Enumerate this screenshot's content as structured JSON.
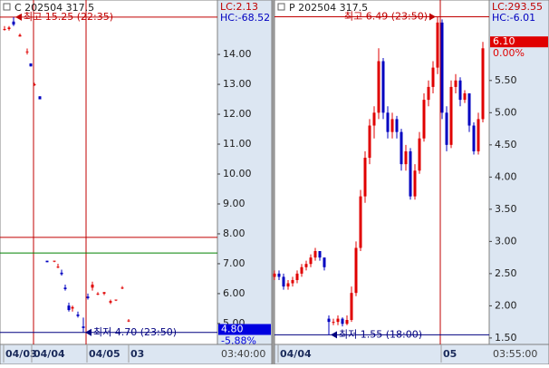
{
  "chart_data": [
    {
      "type": "candlestick",
      "title": "C 202504 317.5",
      "lc": "LC:2.13",
      "hc": "HC:-68.52",
      "x": [
        5,
        10,
        15,
        22,
        30,
        34,
        38,
        44,
        52,
        60,
        64,
        68,
        72,
        76,
        80,
        86,
        92,
        97,
        102,
        108,
        115,
        122,
        128,
        135,
        142
      ],
      "open": [
        14.85,
        14.85,
        15.1,
        14.6,
        14.1,
        13.7,
        13.0,
        12.6,
        7.1,
        7.1,
        6.9,
        6.7,
        6.2,
        5.6,
        5.5,
        5.3,
        4.9,
        5.9,
        6.2,
        6.0,
        6.0,
        5.7,
        5.8,
        6.2,
        5.1
      ],
      "high": [
        14.95,
        14.95,
        15.25,
        14.7,
        14.2,
        13.7,
        13.05,
        12.6,
        7.1,
        7.1,
        7.0,
        6.8,
        6.3,
        5.7,
        5.6,
        5.4,
        5.2,
        6.0,
        6.4,
        6.05,
        6.05,
        5.8,
        5.8,
        6.25,
        5.15
      ],
      "low": [
        14.8,
        14.8,
        14.95,
        14.6,
        14.0,
        13.6,
        12.95,
        12.5,
        7.05,
        7.05,
        6.85,
        6.6,
        6.1,
        5.4,
        5.4,
        5.2,
        4.7,
        5.8,
        6.1,
        5.95,
        5.95,
        5.65,
        5.75,
        6.15,
        5.05
      ],
      "close": [
        14.85,
        14.9,
        15.0,
        14.65,
        14.1,
        13.6,
        13.0,
        12.5,
        7.05,
        7.1,
        6.9,
        6.65,
        6.15,
        5.45,
        5.55,
        5.25,
        4.85,
        5.85,
        6.3,
        6.0,
        6.05,
        5.75,
        5.8,
        6.2,
        5.1
      ],
      "up_color": "#e00000",
      "down_color": "#0000c0",
      "xlim": [
        0,
        240
      ],
      "ylim": [
        4.3,
        15.67
      ],
      "xticks": [
        {
          "value": 4,
          "label": "04/03"
        },
        {
          "value": 35,
          "label": "04/04"
        },
        {
          "value": 96,
          "label": "04/05"
        },
        {
          "value": 142,
          "label": "03"
        }
      ],
      "yticks": [
        {
          "value": 5,
          "label": "5.00"
        },
        {
          "value": 6,
          "label": "6.00"
        },
        {
          "value": 7,
          "label": "7.00"
        },
        {
          "value": 8,
          "label": "8.00"
        },
        {
          "value": 9,
          "label": "9.00"
        },
        {
          "value": 10,
          "label": "10.00"
        },
        {
          "value": 11,
          "label": "11.00"
        },
        {
          "value": 12,
          "label": "12.00"
        },
        {
          "value": 13,
          "label": "13.00"
        },
        {
          "value": 14,
          "label": "14.00"
        }
      ],
      "vlines": [
        37,
        95
      ],
      "hlines": [
        {
          "value": 7.88,
          "color": "#c00000"
        },
        {
          "value": 7.36,
          "color": "#008000"
        }
      ],
      "high_mark": {
        "value": 15.25,
        "label": "최고 15.25 (22:35)"
      },
      "low_mark": {
        "value": 4.7,
        "label": "최저 4.70 (23:50)"
      },
      "last": {
        "value": 4.8,
        "label": "4.80"
      },
      "last_color": "#0000e0",
      "change_label": "-5.88%",
      "time_label": "03:40:00"
    },
    {
      "type": "candlestick",
      "title": "P 202504 317.5",
      "lc": "LC:293.55",
      "hc": "HC:-6.01",
      "x": [
        0,
        5,
        10,
        15,
        20,
        25,
        30,
        35,
        40,
        45,
        50,
        55,
        60,
        65,
        70,
        75,
        80,
        85,
        90,
        95,
        100,
        105,
        110,
        115,
        120,
        125,
        130,
        135,
        140,
        145,
        150,
        155,
        160,
        165,
        170,
        175,
        180,
        185,
        190,
        195,
        200,
        205,
        210,
        215,
        220,
        225,
        230
      ],
      "open": [
        2.45,
        2.5,
        2.45,
        2.3,
        2.35,
        2.4,
        2.5,
        2.6,
        2.65,
        2.75,
        2.85,
        2.75,
        1.8,
        1.75,
        1.75,
        1.8,
        1.72,
        1.78,
        2.2,
        2.9,
        3.7,
        4.3,
        4.8,
        5.0,
        5.8,
        5.0,
        4.7,
        4.9,
        4.7,
        4.2,
        4.4,
        3.7,
        4.1,
        4.6,
        5.2,
        5.4,
        5.7,
        6.4,
        5.0,
        4.5,
        5.4,
        5.5,
        5.2,
        5.3,
        4.8,
        4.4,
        4.9
      ],
      "high": [
        2.55,
        2.55,
        2.5,
        2.4,
        2.45,
        2.55,
        2.65,
        2.7,
        2.8,
        2.9,
        2.85,
        2.75,
        1.85,
        1.8,
        1.85,
        1.82,
        1.85,
        2.3,
        3.0,
        3.8,
        4.4,
        4.9,
        5.1,
        6.0,
        5.85,
        5.1,
        5.0,
        4.95,
        4.75,
        4.5,
        4.45,
        4.2,
        4.7,
        5.3,
        5.5,
        5.8,
        6.49,
        6.45,
        5.1,
        5.5,
        5.6,
        5.55,
        5.35,
        5.3,
        4.85,
        5.0,
        6.1
      ],
      "low": [
        2.4,
        2.4,
        2.25,
        2.25,
        2.3,
        2.35,
        2.45,
        2.55,
        2.6,
        2.7,
        2.7,
        2.55,
        1.55,
        1.7,
        1.7,
        1.68,
        1.7,
        1.75,
        2.15,
        2.85,
        3.6,
        4.2,
        4.6,
        4.9,
        4.9,
        4.6,
        4.6,
        4.6,
        4.1,
        4.1,
        3.65,
        3.65,
        4.05,
        4.55,
        5.1,
        5.3,
        5.6,
        4.9,
        4.4,
        4.45,
        5.3,
        5.1,
        5.15,
        4.7,
        4.35,
        4.35,
        4.85
      ],
      "close": [
        2.5,
        2.45,
        2.3,
        2.35,
        2.4,
        2.5,
        2.6,
        2.65,
        2.75,
        2.85,
        2.75,
        2.6,
        1.75,
        1.75,
        1.8,
        1.72,
        1.78,
        2.2,
        2.9,
        3.7,
        4.3,
        4.8,
        5.0,
        5.8,
        5.0,
        4.7,
        4.9,
        4.7,
        4.2,
        4.4,
        3.7,
        4.1,
        4.6,
        5.2,
        5.4,
        5.7,
        6.4,
        5.0,
        4.5,
        5.4,
        5.5,
        5.2,
        5.3,
        4.8,
        4.4,
        4.9,
        6.0
      ],
      "up_color": "#e00000",
      "down_color": "#0000c0",
      "xlim": [
        0,
        237
      ],
      "ylim": [
        1.4,
        6.68
      ],
      "xticks": [
        {
          "value": 4,
          "label": "04/04"
        },
        {
          "value": 184,
          "label": "05"
        }
      ],
      "yticks": [
        {
          "value": 1.5,
          "label": "1.50"
        },
        {
          "value": 2,
          "label": "2.00"
        },
        {
          "value": 2.5,
          "label": "2.50"
        },
        {
          "value": 3,
          "label": "3.00"
        },
        {
          "value": 3.5,
          "label": "3.50"
        },
        {
          "value": 4,
          "label": "4.00"
        },
        {
          "value": 4.5,
          "label": "4.50"
        },
        {
          "value": 5,
          "label": "5.00"
        },
        {
          "value": 5.5,
          "label": "5.50"
        }
      ],
      "vlines": [
        183
      ],
      "hlines": [],
      "high_mark": {
        "value": 6.49,
        "label": "최고 6.49 (23:50)"
      },
      "low_mark": {
        "value": 1.55,
        "label": "최저 1.55 (18:00)"
      },
      "last": {
        "value": 6.1,
        "label": "6.10"
      },
      "last_color": "#e00000",
      "change_label": "0.00%",
      "time_label": "03:55:00"
    }
  ]
}
